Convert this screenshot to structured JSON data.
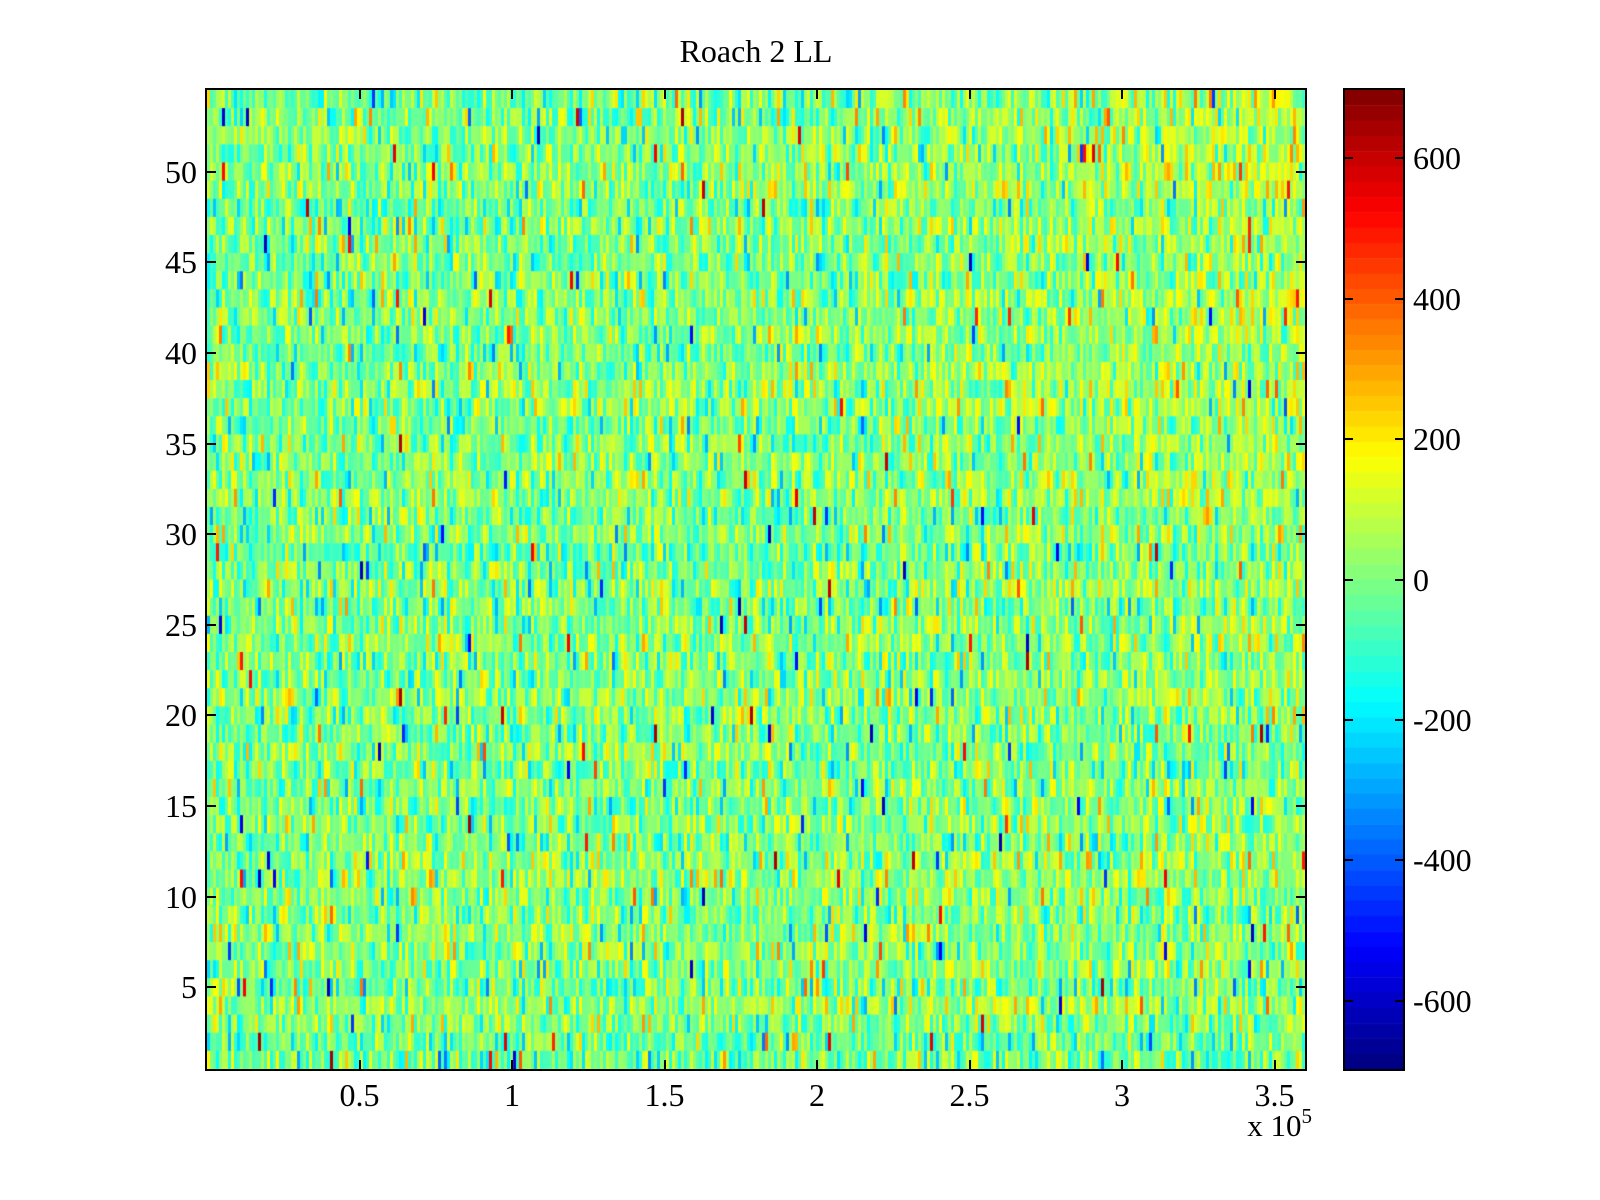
{
  "title": "Roach 2 LL",
  "chart_data": {
    "type": "heatmap",
    "title": "Roach 2 LL",
    "x_axis": {
      "min": 0,
      "max": 360000,
      "tick_values": [
        50000,
        100000,
        150000,
        200000,
        250000,
        300000,
        350000
      ],
      "tick_labels": [
        "0.5",
        "1",
        "1.5",
        "2",
        "2.5",
        "3",
        "3.5"
      ],
      "offset_text": "x 10",
      "offset_exponent": "5"
    },
    "y_axis": {
      "min": 0.5,
      "max": 54.5,
      "tick_values": [
        5,
        10,
        15,
        20,
        25,
        30,
        35,
        40,
        45,
        50
      ],
      "tick_labels": [
        "5",
        "10",
        "15",
        "20",
        "25",
        "30",
        "35",
        "40",
        "45",
        "50"
      ]
    },
    "grid": {
      "rows": 54,
      "cols": 366
    },
    "color_axis": {
      "min": -697,
      "max": 697,
      "colormap": "jet",
      "levels": 64
    },
    "colorbar": {
      "tick_values": [
        600,
        400,
        200,
        0,
        -200,
        -400,
        -600
      ],
      "tick_labels": [
        "600",
        "400",
        "200",
        "0",
        "-200",
        "-400",
        "-600"
      ]
    },
    "noise_model": {
      "seed": 20,
      "sigma": 112,
      "row_sigma": 15,
      "spike_probability": 0.013,
      "spike_min": 260,
      "spike_span": 390,
      "corner_bias": 55,
      "corner_edge_bias": 65,
      "left_top_bias": -18
    },
    "appearance": {
      "background": "#ffffff",
      "axis_color": "#000000",
      "tick_direction": "in"
    }
  }
}
